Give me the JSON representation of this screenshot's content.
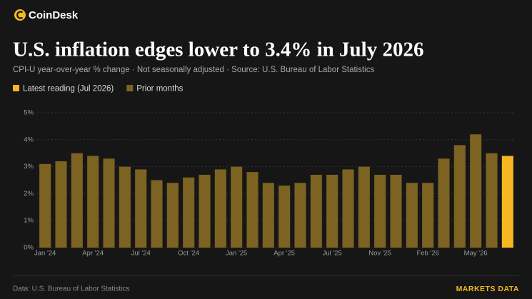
{
  "brand": "CoinDesk",
  "chart_data": {
    "type": "bar",
    "title": "U.S. inflation edges lower to 3.4% in July 2026",
    "subtitle": "CPI-U year-over-year % change · Not seasonally adjusted · Source: U.S. Bureau of Labor Statistics",
    "categories": [
      "Jan '24",
      null,
      null,
      "Apr '24",
      null,
      null,
      "Jul '24",
      null,
      null,
      "Oct '24",
      null,
      null,
      "Jan '25",
      null,
      null,
      "Apr '25",
      null,
      null,
      "Jul '25",
      null,
      null,
      "Nov '25",
      null,
      null,
      "Feb '26",
      null,
      null,
      "May '26",
      null,
      null
    ],
    "series": [
      {
        "name": "Latest reading (Jul 2026)",
        "color": "#f5b823",
        "values": [
          null,
          null,
          null,
          null,
          null,
          null,
          null,
          null,
          null,
          null,
          null,
          null,
          null,
          null,
          null,
          null,
          null,
          null,
          null,
          null,
          null,
          null,
          null,
          null,
          null,
          null,
          null,
          null,
          null,
          3.4
        ]
      },
      {
        "name": "Prior months",
        "color": "#7d6322",
        "values": [
          3.1,
          3.2,
          3.5,
          3.4,
          3.3,
          3.0,
          2.9,
          2.5,
          2.4,
          2.6,
          2.7,
          2.9,
          3.0,
          2.8,
          2.4,
          2.3,
          2.4,
          2.7,
          2.7,
          2.9,
          3.0,
          2.7,
          2.7,
          2.4,
          2.4,
          3.3,
          3.8,
          4.2,
          3.5,
          null
        ]
      }
    ],
    "ylim": [
      0,
      5
    ],
    "yticks": [
      {
        "value": 0,
        "label": "0%"
      },
      {
        "value": 1,
        "label": "1%"
      },
      {
        "value": 2,
        "label": "2%"
      },
      {
        "value": 3,
        "label": "3%"
      },
      {
        "value": 4,
        "label": "4%"
      },
      {
        "value": 5,
        "label": "5%"
      }
    ],
    "grid": true
  },
  "footer": {
    "source": "Data: U.S. Bureau of Labor Statistics",
    "section": "MARKETS DATA"
  }
}
